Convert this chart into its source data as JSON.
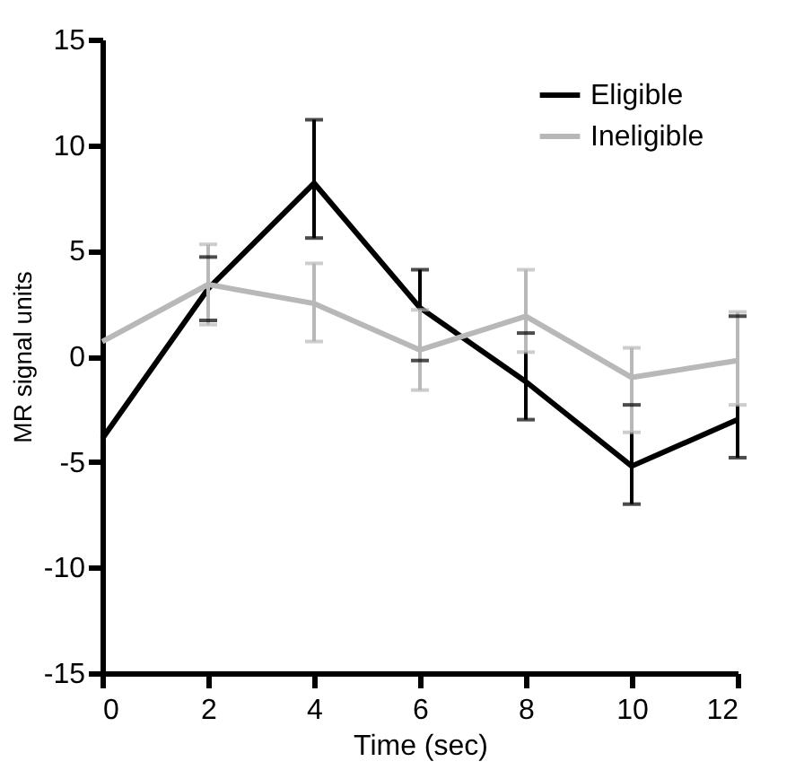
{
  "chart_data": {
    "type": "line",
    "xlabel": "Time (sec)",
    "ylabel": "MR signal units",
    "x": [
      0,
      2,
      4,
      6,
      8,
      10,
      12
    ],
    "series": [
      {
        "name": "Eligible",
        "color": "#000000",
        "values": [
          -3.9,
          3.2,
          8.2,
          2.3,
          -1.2,
          -5.2,
          -3.0
        ],
        "errors": [
          null,
          [
            1.7,
            4.7
          ],
          [
            5.6,
            11.2
          ],
          [
            -0.2,
            4.1
          ],
          [
            -3.0,
            1.1
          ],
          [
            -7.0,
            -2.3
          ],
          [
            -4.8,
            1.9
          ]
        ]
      },
      {
        "name": "Ineligible",
        "color": "#b8b8b8",
        "values": [
          0.7,
          3.4,
          2.5,
          0.3,
          1.9,
          -1.0,
          -0.2
        ],
        "errors": [
          null,
          [
            1.5,
            5.3
          ],
          [
            0.7,
            4.4
          ],
          [
            -1.6,
            2.2
          ],
          [
            0.2,
            4.1
          ],
          [
            -3.6,
            0.4
          ],
          [
            -2.3,
            2.1
          ]
        ]
      }
    ],
    "xlim": [
      0,
      12
    ],
    "xticks": [
      0,
      2,
      4,
      6,
      8,
      10,
      12
    ],
    "ylim": [
      -15,
      15
    ],
    "yticks": [
      -15,
      -10,
      -5,
      0,
      5,
      10,
      15
    ],
    "grid": false,
    "legend": "top right",
    "marker": "none",
    "line_style": "solid"
  }
}
